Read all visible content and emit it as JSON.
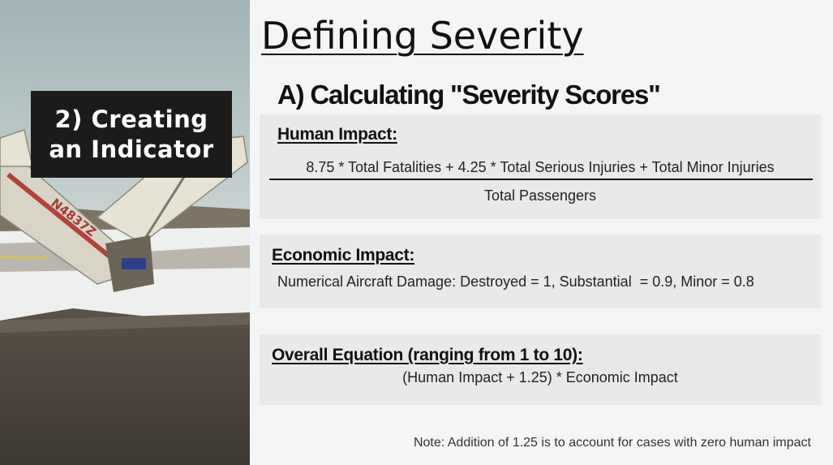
{
  "photo": {
    "aircraft_registration": "N4837Z",
    "overlay_line1": "2) Creating",
    "overlay_line2": "an Indicator"
  },
  "slide": {
    "title": "Defining Severity",
    "section_heading": "A) Calculating \"Severity Scores\"",
    "note": "Note: Addition of 1.25 is to account for cases with zero human impact"
  },
  "human_impact": {
    "label": "Human Impact:",
    "numerator": "8.75 * Total Fatalities + 4.25 * Total Serious Injuries + Total Minor Injuries",
    "denominator": "Total Passengers"
  },
  "economic_impact": {
    "label": "Economic Impact:",
    "body": "Numerical Aircraft Damage: Destroyed = 1, Substantial  = 0.9, Minor = 0.8"
  },
  "overall": {
    "label": "Overall Equation (ranging from 1 to 10):",
    "body": "(Human Impact + 1.25) * Economic Impact"
  }
}
